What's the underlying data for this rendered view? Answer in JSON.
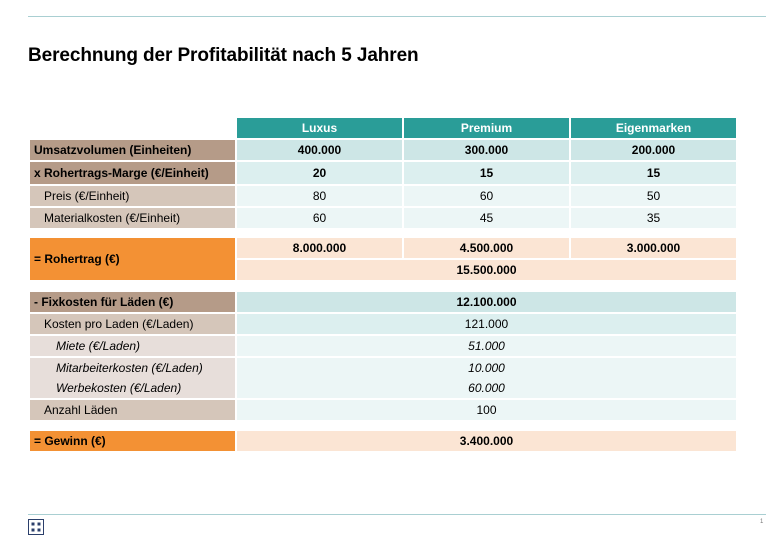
{
  "title": "Berechnung der Profitabilität nach 5 Jahren",
  "columns": [
    "Luxus",
    "Premium",
    "Eigenmarken"
  ],
  "rows": {
    "umsatz": {
      "label": "Umsatzvolumen (Einheiten)",
      "values": [
        "400.000",
        "300.000",
        "200.000"
      ]
    },
    "marge": {
      "label": "x Rohertrags-Marge (€/Einheit)",
      "values": [
        "20",
        "15",
        "15"
      ]
    },
    "preis": {
      "label": "Preis (€/Einheit)",
      "values": [
        "80",
        "60",
        "50"
      ]
    },
    "material": {
      "label": "Materialkosten (€/Einheit)",
      "values": [
        "60",
        "45",
        "35"
      ]
    },
    "rohertrag": {
      "label": "= Rohertrag (€)",
      "values": [
        "8.000.000",
        "4.500.000",
        "3.000.000"
      ],
      "total": "15.500.000"
    },
    "fixkosten": {
      "label": "- Fixkosten für Läden (€)",
      "value": "12.100.000"
    },
    "kosten_laden": {
      "label": "Kosten pro Laden (€/Laden)",
      "value": "121.000"
    },
    "miete": {
      "label": "Miete (€/Laden)",
      "value": "51.000"
    },
    "mitarbeiter": {
      "label": "Mitarbeiterkosten (€/Laden)",
      "value": "10.000"
    },
    "werbe": {
      "label": "Werbekosten (€/Laden)",
      "value": "60.000"
    },
    "anzahl": {
      "label": "Anzahl Läden",
      "value": "100"
    },
    "gewinn": {
      "label": "= Gewinn (€)",
      "value": "3.400.000"
    }
  },
  "page_number": "1",
  "colors": {
    "header": "#2a9d98",
    "label_main": "#b59b88",
    "label_sub": "#d5c6ba",
    "orange": "#f39134",
    "peach": "#fbe5d4"
  },
  "footer_icon": "grid-logo-icon"
}
